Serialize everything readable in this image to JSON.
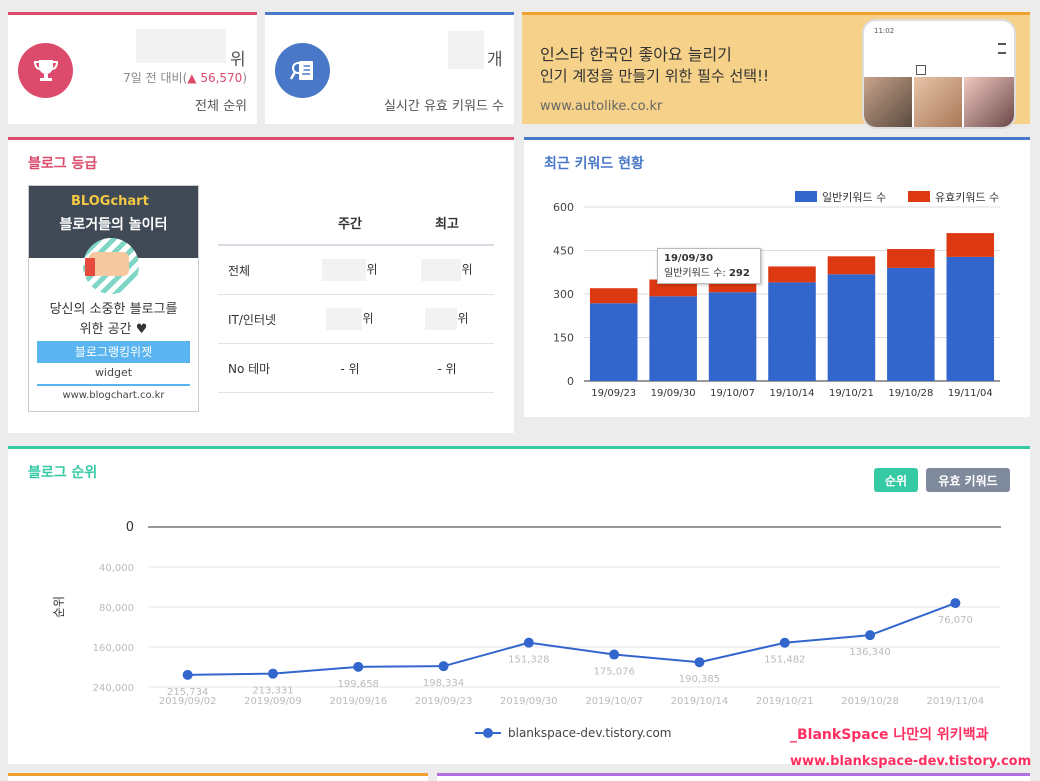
{
  "stats": {
    "rank_unit": "위",
    "rank_change_prefix": "7일 전 대비(",
    "rank_change_arrow": "▲",
    "rank_change_value": "56,570",
    "rank_change_suffix": ")",
    "rank_label": "전체 순위",
    "keyword_unit": "개",
    "keyword_label": "실시간 유효 키워드 수"
  },
  "ad": {
    "line1": "인스타 한국인 좋아요 늘리기",
    "line2": "인기 계정을 만들기 위한 필수 선택!!",
    "url": "www.autolike.co.kr",
    "phone_time": "11:02"
  },
  "grade": {
    "title": "블로그 등급",
    "banner_logo": "BLOGchart",
    "banner_title": "블로거들의 놀이터",
    "banner_text1": "당신의 소중한 블로그를",
    "banner_text2": "위한 공간 ♥",
    "banner_btn": "블로그랭킹위젯",
    "banner_widget": "widget",
    "banner_url": "www.blogchart.co.kr",
    "col_weekly": "주간",
    "col_best": "최고",
    "rows": [
      {
        "label": "전체",
        "weekly": "위",
        "best": "위"
      },
      {
        "label": "IT/인터넷",
        "weekly": "위",
        "best": "위"
      },
      {
        "label": "No 테마",
        "weekly": "- 위",
        "best": "- 위"
      }
    ]
  },
  "keywords": {
    "title": "최근 키워드 현황",
    "tooltip_date": "19/09/30",
    "tooltip_label": "일반키워드 수:",
    "tooltip_value": "292"
  },
  "blog_rank": {
    "title": "블로그 순위",
    "btn_rank": "순위",
    "btn_keyword": "유효 키워드"
  },
  "watermark": {
    "line1": "_BlankSpace 나만의 위키백과",
    "line2": "www.blankspace-dev.tistory.com"
  },
  "colors": {
    "red_accent": "#dc4a6c",
    "blue_accent": "#4a78c8",
    "bar_blue": "#3366cc",
    "bar_red": "#dc3912",
    "teal": "#35c9a4"
  },
  "chart_data": [
    {
      "type": "bar",
      "stacked": true,
      "categories": [
        "19/09/23",
        "19/09/30",
        "19/10/07",
        "19/10/14",
        "19/10/21",
        "19/10/28",
        "19/11/04"
      ],
      "series": [
        {
          "name": "일반키워드 수",
          "color": "#3366cc",
          "values": [
            268,
            292,
            306,
            340,
            368,
            390,
            428
          ]
        },
        {
          "name": "유효키워드 수",
          "color": "#dc3912",
          "values": [
            52,
            58,
            40,
            55,
            62,
            65,
            82
          ]
        }
      ],
      "ylim": [
        0,
        600
      ],
      "yticks": [
        0,
        150,
        300,
        450,
        600
      ],
      "grid": true,
      "legend": "top-right"
    },
    {
      "type": "line",
      "categories": [
        "2019/09/02",
        "2019/09/09",
        "2019/09/16",
        "2019/09/23",
        "2019/09/30",
        "2019/10/07",
        "2019/10/14",
        "2019/10/21",
        "2019/10/28",
        "2019/11/04"
      ],
      "series": [
        {
          "name": "blankspace-dev.tistory.com",
          "color": "#3366cc",
          "values": [
            215734,
            213331,
            199658,
            198334,
            151328,
            175076,
            190385,
            151482,
            136340,
            76070
          ],
          "labels": [
            "215,734",
            "213,331",
            "199,658",
            "198,334",
            "151,328",
            "175,076",
            "190,385",
            "151,482",
            "136,340",
            "76,070"
          ]
        }
      ],
      "ylabel": "순위",
      "yticks": [
        0,
        40000,
        80000,
        160000,
        240000
      ],
      "ytick_labels": [
        "0",
        "40,000",
        "80,000",
        "160,000",
        "240,000"
      ],
      "ylim": [
        0,
        240000
      ],
      "reversed": true,
      "legend": "bottom"
    }
  ]
}
